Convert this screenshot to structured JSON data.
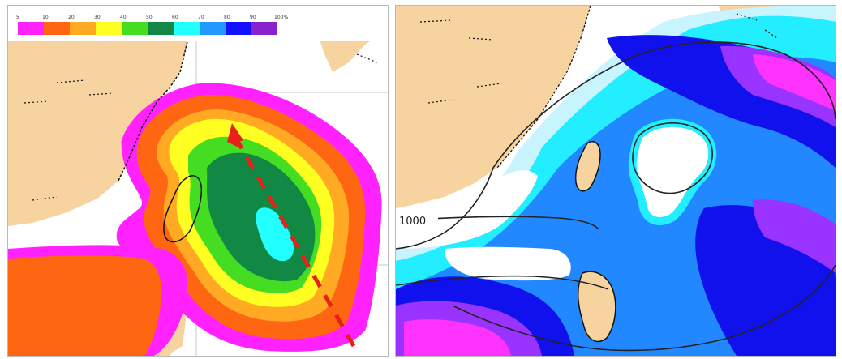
{
  "left_panel": {
    "legend": {
      "ticks": [
        "5",
        "10",
        "20",
        "30",
        "40",
        "50",
        "60",
        "70",
        "80",
        "90",
        "100%"
      ],
      "colors": [
        "#ff22ff",
        "#ff6611",
        "#ffaa22",
        "#ffff22",
        "#44dd22",
        "#118844",
        "#22ffff",
        "#2299ff",
        "#1111ff",
        "#8822cc"
      ]
    },
    "probability_colors": {
      "5": "#ff22ff",
      "10": "#ff6611",
      "20": "#ffaa22",
      "30": "#ffff22",
      "40": "#44dd22",
      "50": "#118844",
      "60": "#22ffff"
    },
    "track_arrow_color": "#e8201c",
    "land_color": "#f7d3a0",
    "sea_color": "#ffffff"
  },
  "right_panel": {
    "contour_label": "1000",
    "colors": {
      "light": "#c8f4ff",
      "cyan": "#22eeff",
      "blue": "#2288ff",
      "dark_blue": "#1111ee",
      "purple": "#9933ff",
      "magenta": "#ff33ff"
    },
    "land_color": "#f7d3a0"
  }
}
